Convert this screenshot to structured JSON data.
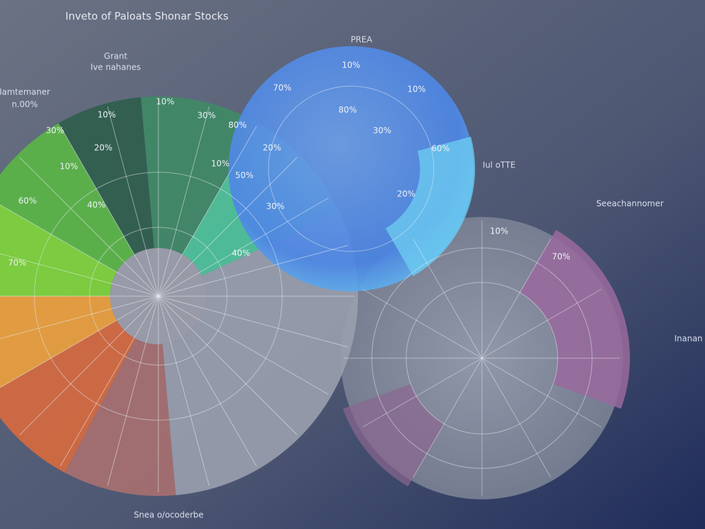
{
  "title": "Inveto of Paloats Shonar Stocks",
  "side_labels": [
    "Grant",
    "Ive nahanes",
    "Iamtemaner",
    "n.00%",
    "Iul oTTE",
    "Seeachannomer",
    "Inanan",
    "PREA",
    "Snea o/ocoderbe"
  ],
  "sector_labels": [
    "10%",
    "30%",
    "20%",
    "10%",
    "60%",
    "40%",
    "70%",
    "10%",
    "30%",
    "80%",
    "20%",
    "10%",
    "50%",
    "30%",
    "10%",
    "70%",
    "10%",
    "80%",
    "30%",
    "60%",
    "20%",
    "40%",
    "10%",
    "70%"
  ]
}
